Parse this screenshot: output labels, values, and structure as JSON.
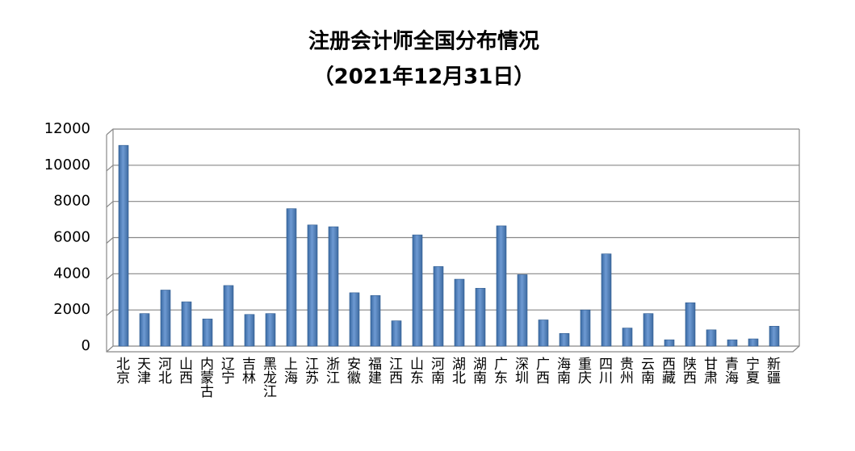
{
  "chart_data": {
    "type": "bar",
    "title": "注册会计师全国分布情况",
    "subtitle": "（2021年12月31日）",
    "categories": [
      "北京",
      "天津",
      "河北",
      "山西",
      "内蒙古",
      "辽宁",
      "吉林",
      "黑龙江",
      "上海",
      "江苏",
      "浙江",
      "安徽",
      "福建",
      "江西",
      "山东",
      "河南",
      "湖北",
      "湖南",
      "广东",
      "深圳",
      "广西",
      "海南",
      "重庆",
      "四川",
      "贵州",
      "云南",
      "西藏",
      "陕西",
      "甘肃",
      "青海",
      "宁夏",
      "新疆"
    ],
    "values": [
      11100,
      1800,
      3100,
      2450,
      1500,
      3350,
      1750,
      1800,
      7600,
      6700,
      6600,
      2950,
      2800,
      1400,
      6150,
      4400,
      3700,
      3200,
      6650,
      3950,
      1450,
      700,
      2000,
      5100,
      1000,
      1800,
      350,
      2400,
      900,
      350,
      400,
      1100
    ],
    "color": "#4f81bd",
    "ylim": [
      0,
      12000
    ],
    "yticks": [
      0,
      2000,
      4000,
      6000,
      8000,
      10000,
      12000
    ],
    "grid": true
  }
}
